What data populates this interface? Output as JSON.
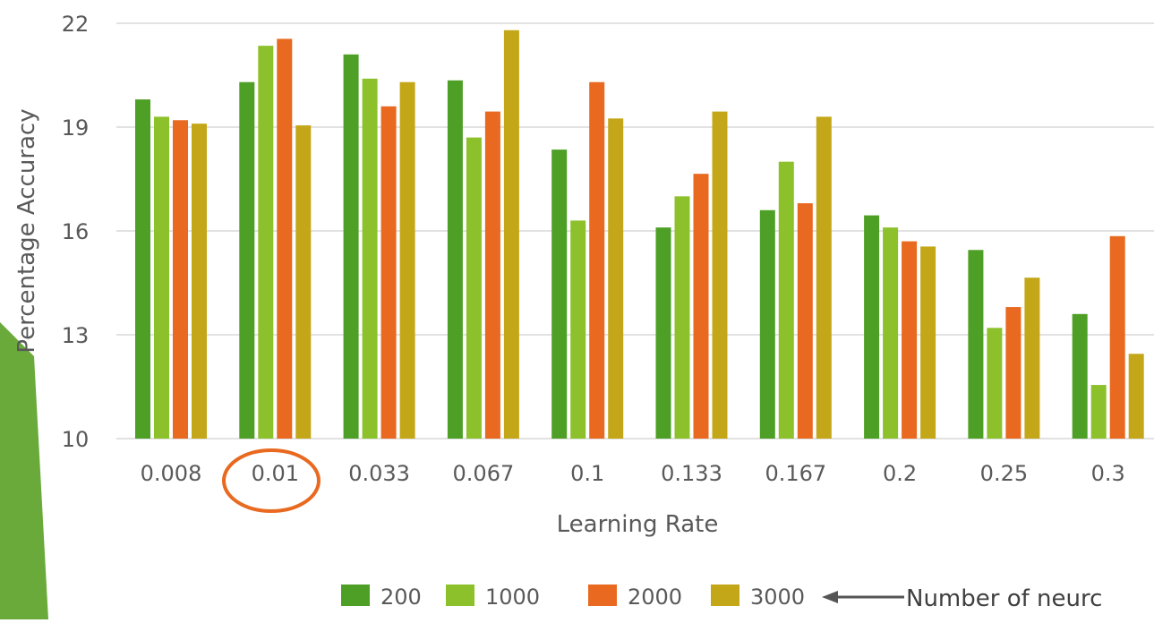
{
  "chart_data": {
    "type": "bar",
    "xlabel": "Learning Rate",
    "ylabel": "Percentage Accuracy",
    "ylim": [
      10,
      22
    ],
    "yticks": [
      10,
      13,
      16,
      19,
      22
    ],
    "grid": true,
    "legend_position": "bottom",
    "categories": [
      "0.008",
      "0.01",
      "0.033",
      "0.067",
      "0.1",
      "0.133",
      "0.167",
      "0.2",
      "0.25",
      "0.3"
    ],
    "series": [
      {
        "name": "200",
        "color": "#4e9f25",
        "values": [
          19.8,
          20.3,
          21.1,
          20.35,
          18.35,
          16.1,
          16.6,
          16.45,
          15.45,
          13.6
        ]
      },
      {
        "name": "1000",
        "color": "#8dc12c",
        "values": [
          19.3,
          21.35,
          20.4,
          18.7,
          16.3,
          17.0,
          18.0,
          16.1,
          13.2,
          11.55
        ]
      },
      {
        "name": "2000",
        "color": "#e8691f",
        "values": [
          19.2,
          21.55,
          19.6,
          19.45,
          20.3,
          17.65,
          16.8,
          15.7,
          13.8,
          15.85
        ]
      },
      {
        "name": "3000",
        "color": "#c4a718",
        "values": [
          19.1,
          19.05,
          20.3,
          21.8,
          19.25,
          19.45,
          19.3,
          15.55,
          14.65,
          12.45
        ]
      }
    ],
    "highlight": {
      "category": "0.01",
      "shape": "ellipse",
      "color": "#e8691f"
    },
    "annotation": {
      "text": "Number of neurc",
      "points_to": "legend",
      "arrow_color": "#555555"
    },
    "accent_color": "#6aaa3a"
  }
}
